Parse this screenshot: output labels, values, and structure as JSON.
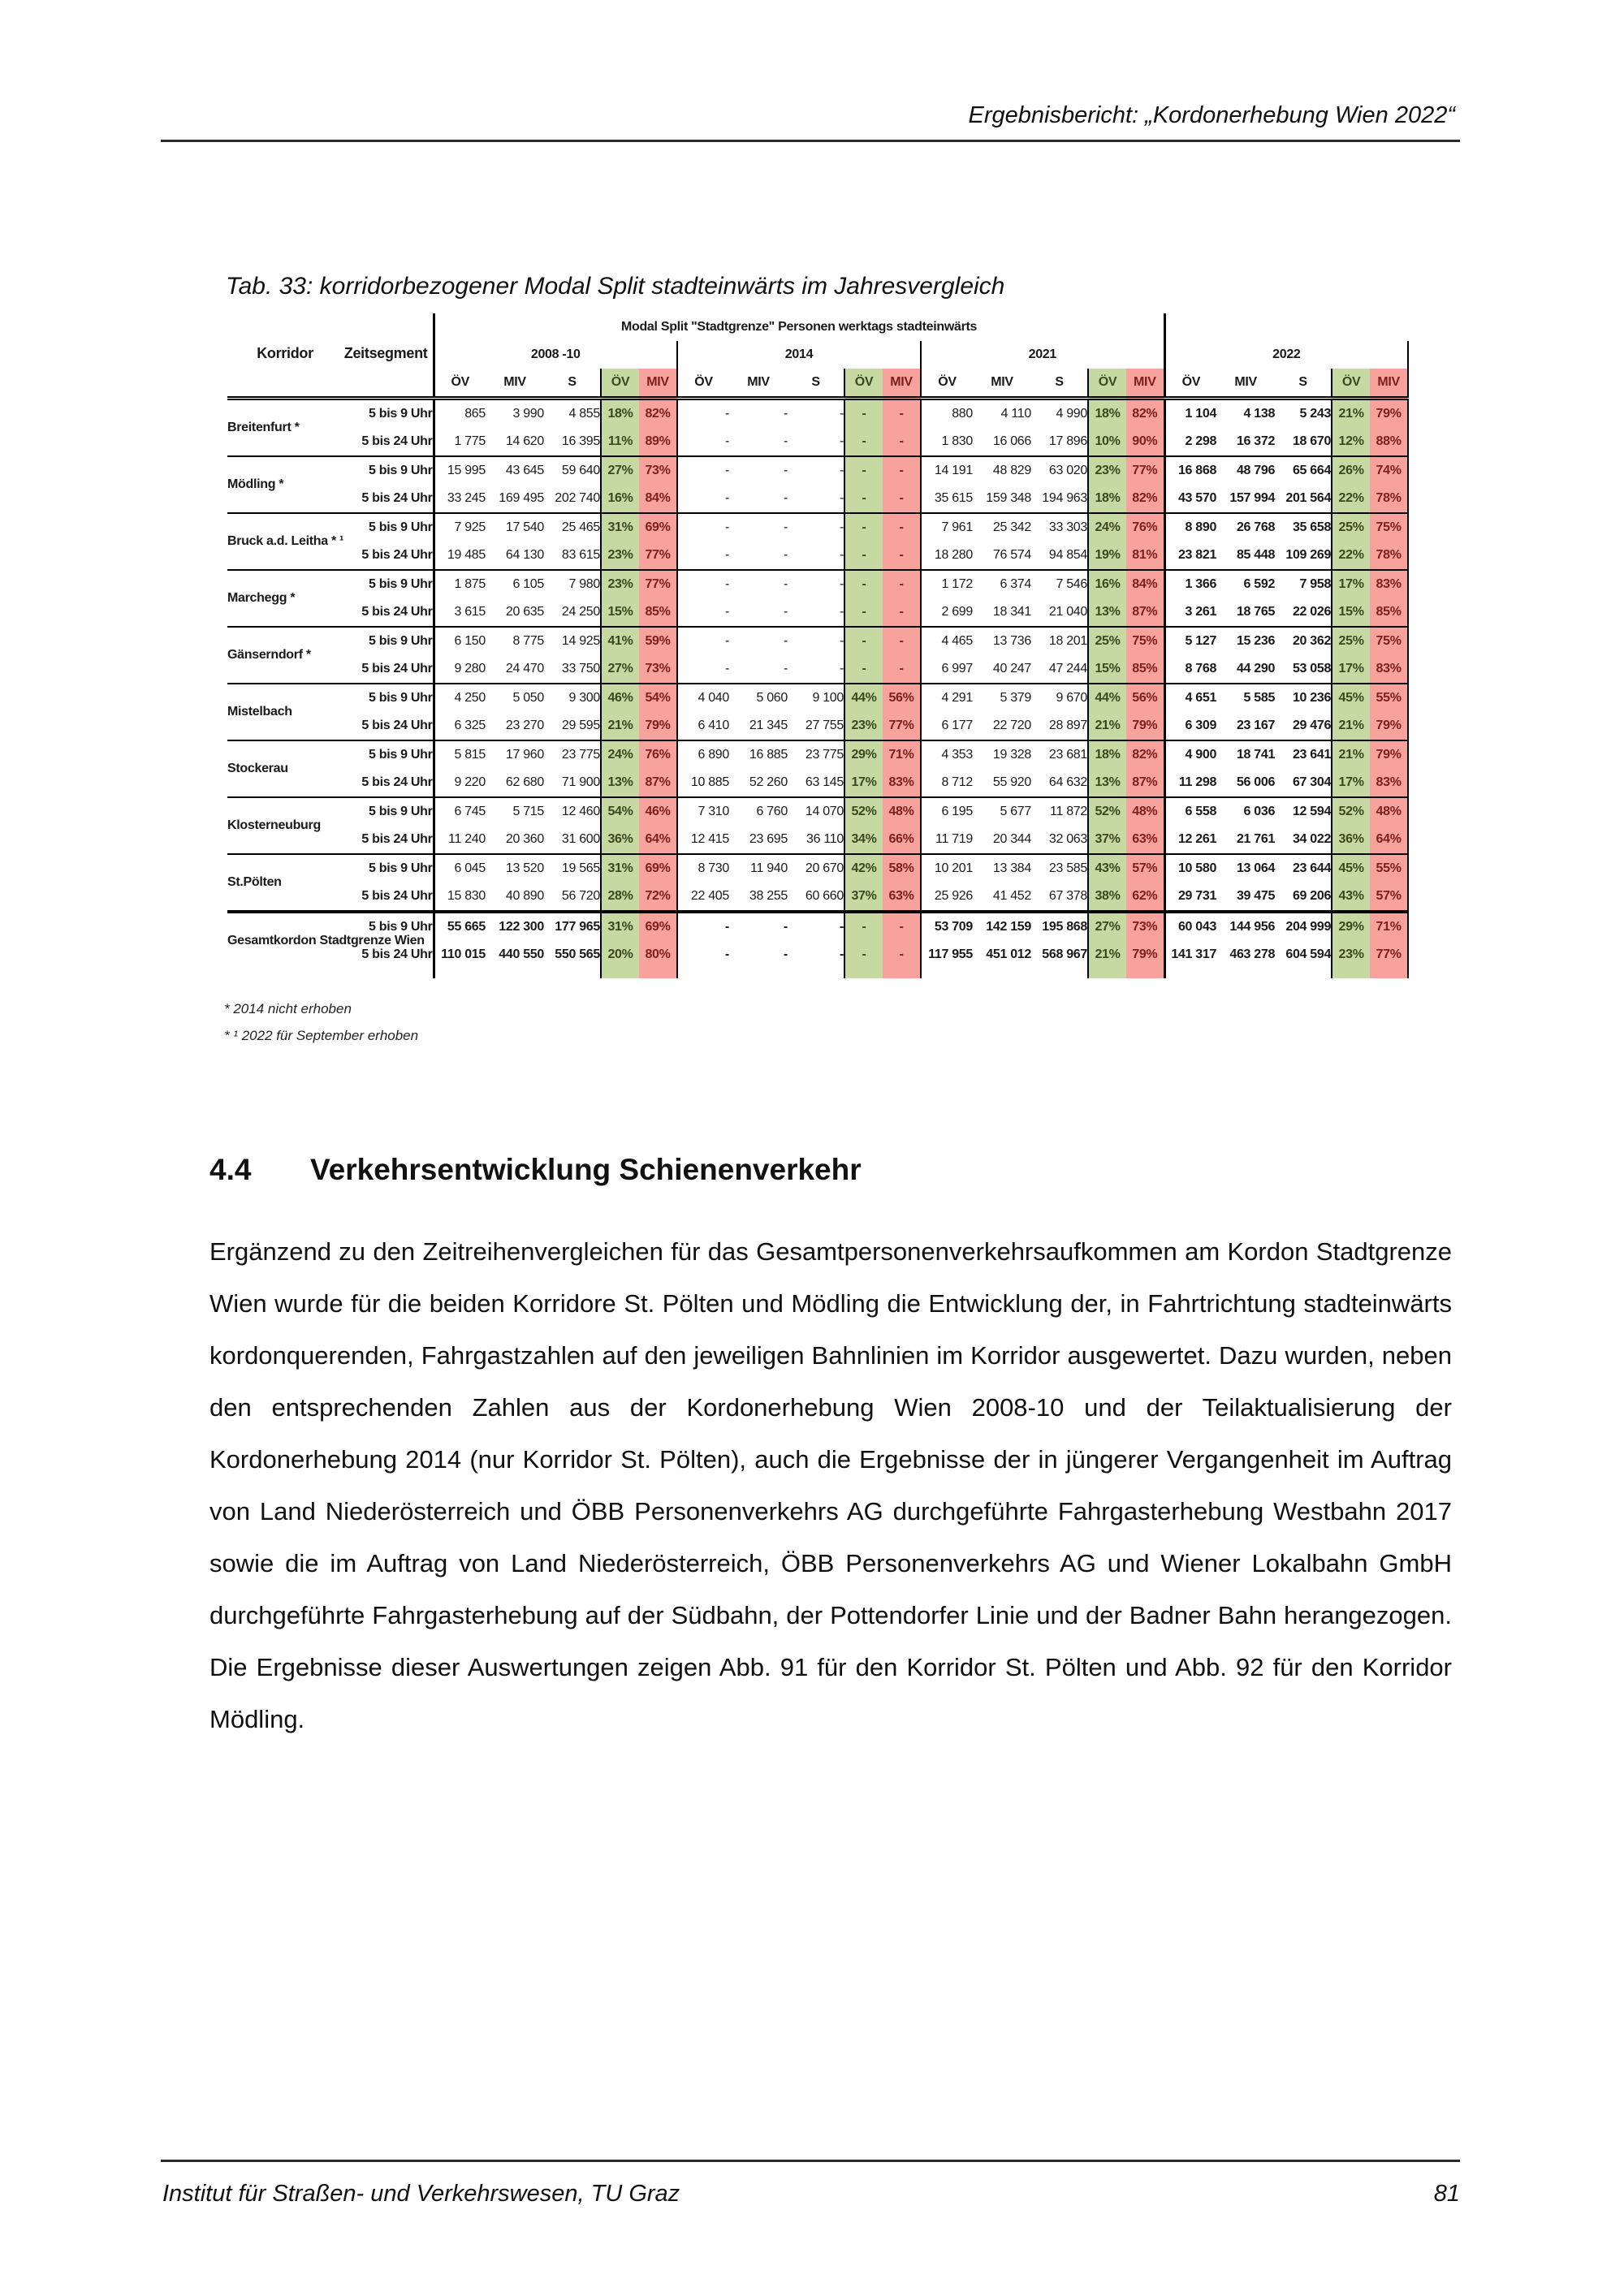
{
  "page": {
    "header_right": "Ergebnisbericht: „Kordonerhebung Wien 2022“",
    "footer_left": "Institut für Straßen- und Verkehrswesen, TU Graz",
    "page_number": "81"
  },
  "section": {
    "number": "4.4",
    "title": "Verkehrsentwicklung Schienenverkehr"
  },
  "paragraph": "Ergänzend zu den Zeitreihenvergleichen für das Gesamtpersonenverkehrsaufkommen am Kordon Stadtgrenze Wien wurde für die beiden Korridore St. Pölten und Mödling die Entwicklung der, in Fahrtrichtung stadteinwärts kordonquerenden, Fahrgastzahlen auf den jeweiligen Bahnlinien im Korridor ausgewertet. Dazu wurden, neben den entsprechenden Zahlen aus der Kordonerhebung Wien 2008-10 und der Teilaktualisierung der Kordonerhebung 2014 (nur Korridor St. Pölten), auch die Ergebnisse der in jüngerer Vergangenheit im Auftrag von Land Niederösterreich und ÖBB Personenverkehrs AG durchgeführte Fahrgasterhebung Westbahn 2017 sowie die im Auftrag von Land Niederösterreich, ÖBB Personenverkehrs AG und Wiener Lokalbahn GmbH durchgeführte Fahrgasterhebung auf der Südbahn, der Pottendorfer Linie und der Badner Bahn herangezogen. Die Ergebnisse dieser Auswertungen zeigen Abb. 91 für den Korridor St. Pölten und Abb. 92 für den Korridor Mödling.",
  "table": {
    "caption": "Tab. 33: korridorbezogener Modal Split stadteinwärts im Jahresvergleich",
    "title": "Modal Split \"Stadtgrenze\" Personen werktags stadteinwärts",
    "col_korridor": "Korridor",
    "col_zeitsegment": "Zeitsegment",
    "year_groups": [
      "2008 -10",
      "2014",
      "2021",
      "2022"
    ],
    "sub_headers": [
      "ÖV",
      "MIV",
      "S",
      "ÖV",
      "MIV"
    ],
    "colors": {
      "green": "#c6d9a2",
      "red": "#f7a29d"
    },
    "footnotes": [
      "* 2014 nicht erhoben",
      "* ¹  2022 für September erhoben"
    ],
    "corridors": [
      {
        "name": "Breitenfurt *",
        "rows": [
          {
            "segment": "5 bis 9 Uhr",
            "groups": [
              [
                "865",
                "3 990",
                "4 855",
                "18%",
                "82%"
              ],
              [
                "-",
                "-",
                "-",
                "-",
                "-"
              ],
              [
                "880",
                "4 110",
                "4 990",
                "18%",
                "82%"
              ],
              [
                "1 104",
                "4 138",
                "5 243",
                "21%",
                "79%"
              ]
            ]
          },
          {
            "segment": "5 bis 24 Uhr",
            "groups": [
              [
                "1 775",
                "14 620",
                "16 395",
                "11%",
                "89%"
              ],
              [
                "-",
                "-",
                "-",
                "-",
                "-"
              ],
              [
                "1 830",
                "16 066",
                "17 896",
                "10%",
                "90%"
              ],
              [
                "2 298",
                "16 372",
                "18 670",
                "12%",
                "88%"
              ]
            ]
          }
        ]
      },
      {
        "name": "Mödling *",
        "rows": [
          {
            "segment": "5 bis 9 Uhr",
            "groups": [
              [
                "15 995",
                "43 645",
                "59 640",
                "27%",
                "73%"
              ],
              [
                "-",
                "-",
                "-",
                "-",
                "-"
              ],
              [
                "14 191",
                "48 829",
                "63 020",
                "23%",
                "77%"
              ],
              [
                "16 868",
                "48 796",
                "65 664",
                "26%",
                "74%"
              ]
            ]
          },
          {
            "segment": "5 bis 24 Uhr",
            "groups": [
              [
                "33 245",
                "169 495",
                "202 740",
                "16%",
                "84%"
              ],
              [
                "-",
                "-",
                "-",
                "-",
                "-"
              ],
              [
                "35 615",
                "159 348",
                "194 963",
                "18%",
                "82%"
              ],
              [
                "43 570",
                "157 994",
                "201 564",
                "22%",
                "78%"
              ]
            ]
          }
        ]
      },
      {
        "name": "Bruck a.d. Leitha * ¹",
        "rows": [
          {
            "segment": "5 bis 9 Uhr",
            "groups": [
              [
                "7 925",
                "17 540",
                "25 465",
                "31%",
                "69%"
              ],
              [
                "-",
                "-",
                "-",
                "-",
                "-"
              ],
              [
                "7 961",
                "25 342",
                "33 303",
                "24%",
                "76%"
              ],
              [
                "8 890",
                "26 768",
                "35 658",
                "25%",
                "75%"
              ]
            ]
          },
          {
            "segment": "5 bis 24 Uhr",
            "groups": [
              [
                "19 485",
                "64 130",
                "83 615",
                "23%",
                "77%"
              ],
              [
                "-",
                "-",
                "-",
                "-",
                "-"
              ],
              [
                "18 280",
                "76 574",
                "94 854",
                "19%",
                "81%"
              ],
              [
                "23 821",
                "85 448",
                "109 269",
                "22%",
                "78%"
              ]
            ]
          }
        ]
      },
      {
        "name": "Marchegg *",
        "rows": [
          {
            "segment": "5 bis 9 Uhr",
            "groups": [
              [
                "1 875",
                "6 105",
                "7 980",
                "23%",
                "77%"
              ],
              [
                "-",
                "-",
                "-",
                "-",
                "-"
              ],
              [
                "1 172",
                "6 374",
                "7 546",
                "16%",
                "84%"
              ],
              [
                "1 366",
                "6 592",
                "7 958",
                "17%",
                "83%"
              ]
            ]
          },
          {
            "segment": "5 bis 24 Uhr",
            "groups": [
              [
                "3 615",
                "20 635",
                "24 250",
                "15%",
                "85%"
              ],
              [
                "-",
                "-",
                "-",
                "-",
                "-"
              ],
              [
                "2 699",
                "18 341",
                "21 040",
                "13%",
                "87%"
              ],
              [
                "3 261",
                "18 765",
                "22 026",
                "15%",
                "85%"
              ]
            ]
          }
        ]
      },
      {
        "name": "Gänserndorf *",
        "rows": [
          {
            "segment": "5 bis 9 Uhr",
            "groups": [
              [
                "6 150",
                "8 775",
                "14 925",
                "41%",
                "59%"
              ],
              [
                "-",
                "-",
                "-",
                "-",
                "-"
              ],
              [
                "4 465",
                "13 736",
                "18 201",
                "25%",
                "75%"
              ],
              [
                "5 127",
                "15 236",
                "20 362",
                "25%",
                "75%"
              ]
            ]
          },
          {
            "segment": "5 bis 24 Uhr",
            "groups": [
              [
                "9 280",
                "24 470",
                "33 750",
                "27%",
                "73%"
              ],
              [
                "-",
                "-",
                "-",
                "-",
                "-"
              ],
              [
                "6 997",
                "40 247",
                "47 244",
                "15%",
                "85%"
              ],
              [
                "8 768",
                "44 290",
                "53 058",
                "17%",
                "83%"
              ]
            ]
          }
        ]
      },
      {
        "name": "Mistelbach",
        "rows": [
          {
            "segment": "5 bis 9 Uhr",
            "groups": [
              [
                "4 250",
                "5 050",
                "9 300",
                "46%",
                "54%"
              ],
              [
                "4 040",
                "5 060",
                "9 100",
                "44%",
                "56%"
              ],
              [
                "4 291",
                "5 379",
                "9 670",
                "44%",
                "56%"
              ],
              [
                "4 651",
                "5 585",
                "10 236",
                "45%",
                "55%"
              ]
            ]
          },
          {
            "segment": "5 bis 24 Uhr",
            "groups": [
              [
                "6 325",
                "23 270",
                "29 595",
                "21%",
                "79%"
              ],
              [
                "6 410",
                "21 345",
                "27 755",
                "23%",
                "77%"
              ],
              [
                "6 177",
                "22 720",
                "28 897",
                "21%",
                "79%"
              ],
              [
                "6 309",
                "23 167",
                "29 476",
                "21%",
                "79%"
              ]
            ]
          }
        ]
      },
      {
        "name": "Stockerau",
        "rows": [
          {
            "segment": "5 bis 9 Uhr",
            "groups": [
              [
                "5 815",
                "17 960",
                "23 775",
                "24%",
                "76%"
              ],
              [
                "6 890",
                "16 885",
                "23 775",
                "29%",
                "71%"
              ],
              [
                "4 353",
                "19 328",
                "23 681",
                "18%",
                "82%"
              ],
              [
                "4 900",
                "18 741",
                "23 641",
                "21%",
                "79%"
              ]
            ]
          },
          {
            "segment": "5 bis 24 Uhr",
            "groups": [
              [
                "9 220",
                "62 680",
                "71 900",
                "13%",
                "87%"
              ],
              [
                "10 885",
                "52 260",
                "63 145",
                "17%",
                "83%"
              ],
              [
                "8 712",
                "55 920",
                "64 632",
                "13%",
                "87%"
              ],
              [
                "11 298",
                "56 006",
                "67 304",
                "17%",
                "83%"
              ]
            ]
          }
        ]
      },
      {
        "name": "Klosterneuburg",
        "rows": [
          {
            "segment": "5 bis 9 Uhr",
            "groups": [
              [
                "6 745",
                "5 715",
                "12 460",
                "54%",
                "46%"
              ],
              [
                "7 310",
                "6 760",
                "14 070",
                "52%",
                "48%"
              ],
              [
                "6 195",
                "5 677",
                "11 872",
                "52%",
                "48%"
              ],
              [
                "6 558",
                "6 036",
                "12 594",
                "52%",
                "48%"
              ]
            ]
          },
          {
            "segment": "5 bis 24 Uhr",
            "groups": [
              [
                "11 240",
                "20 360",
                "31 600",
                "36%",
                "64%"
              ],
              [
                "12 415",
                "23 695",
                "36 110",
                "34%",
                "66%"
              ],
              [
                "11 719",
                "20 344",
                "32 063",
                "37%",
                "63%"
              ],
              [
                "12 261",
                "21 761",
                "34 022",
                "36%",
                "64%"
              ]
            ]
          }
        ]
      },
      {
        "name": "St.Pölten",
        "rows": [
          {
            "segment": "5 bis 9 Uhr",
            "groups": [
              [
                "6 045",
                "13 520",
                "19 565",
                "31%",
                "69%"
              ],
              [
                "8 730",
                "11 940",
                "20 670",
                "42%",
                "58%"
              ],
              [
                "10 201",
                "13 384",
                "23 585",
                "43%",
                "57%"
              ],
              [
                "10 580",
                "13 064",
                "23 644",
                "45%",
                "55%"
              ]
            ]
          },
          {
            "segment": "5 bis 24 Uhr",
            "groups": [
              [
                "15 830",
                "40 890",
                "56 720",
                "28%",
                "72%"
              ],
              [
                "22 405",
                "38 255",
                "60 660",
                "37%",
                "63%"
              ],
              [
                "25 926",
                "41 452",
                "67 378",
                "38%",
                "62%"
              ],
              [
                "29 731",
                "39 475",
                "69 206",
                "43%",
                "57%"
              ]
            ]
          }
        ]
      },
      {
        "name": "Gesamtkordon\nStadtgrenze Wien",
        "total": true,
        "rows": [
          {
            "segment": "5 bis 9 Uhr",
            "groups": [
              [
                "55 665",
                "122 300",
                "177 965",
                "31%",
                "69%"
              ],
              [
                "-",
                "-",
                "-",
                "-",
                "-"
              ],
              [
                "53 709",
                "142 159",
                "195 868",
                "27%",
                "73%"
              ],
              [
                "60 043",
                "144 956",
                "204 999",
                "29%",
                "71%"
              ]
            ]
          },
          {
            "segment": "5 bis 24 Uhr",
            "groups": [
              [
                "110 015",
                "440 550",
                "550 565",
                "20%",
                "80%"
              ],
              [
                "-",
                "-",
                "-",
                "-",
                "-"
              ],
              [
                "117 955",
                "451 012",
                "568 967",
                "21%",
                "79%"
              ],
              [
                "141 317",
                "463 278",
                "604 594",
                "23%",
                "77%"
              ]
            ]
          }
        ]
      }
    ]
  }
}
